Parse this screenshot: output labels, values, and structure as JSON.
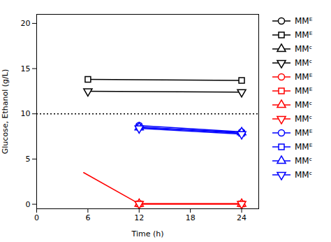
{
  "chart_data": {
    "type": "line",
    "xlabel": "Time (h)",
    "ylabel": "Glucose, Ethanol (g/L)",
    "xlim": [
      0,
      26
    ],
    "ylim": [
      -0.5,
      21
    ],
    "xticks": [
      0,
      6,
      12,
      18,
      24
    ],
    "yticks": [
      0,
      5,
      10,
      15,
      20
    ],
    "legend": "right",
    "reference_lines": [
      {
        "y": 10,
        "color": "black",
        "line_style": "dotted"
      }
    ],
    "series": [
      {
        "color": "red",
        "x": [
          5.5,
          12
        ],
        "values": [
          3.5,
          0.05
        ]
      },
      {
        "name": "MMᴱ",
        "color": "black",
        "marker": "circle",
        "x": [],
        "values": []
      },
      {
        "name": "MMᴱ",
        "color": "black",
        "marker": "square",
        "x": [
          6,
          24
        ],
        "values": [
          13.8,
          13.7
        ]
      },
      {
        "name": "MMᶜ",
        "color": "black",
        "marker": "triangle-up",
        "x": [],
        "values": []
      },
      {
        "name": "MMᶜ",
        "color": "black",
        "marker": "triangle-down",
        "x": [
          6,
          24
        ],
        "values": [
          12.5,
          12.4
        ]
      },
      {
        "name": "MMᴱ",
        "color": "red",
        "marker": "circle",
        "x": [
          12,
          24
        ],
        "values": [
          0.05,
          0.05
        ]
      },
      {
        "name": "MMᴱ",
        "color": "red",
        "marker": "square",
        "x": [
          12,
          24
        ],
        "values": [
          0.05,
          0.05
        ]
      },
      {
        "name": "MMᶜ",
        "color": "red",
        "marker": "triangle-up",
        "x": [
          12,
          24
        ],
        "values": [
          0.05,
          0.05
        ]
      },
      {
        "name": "MMᶜ",
        "color": "red",
        "marker": "triangle-down",
        "x": [
          12,
          24
        ],
        "values": [
          0.05,
          0.05
        ]
      },
      {
        "name": "MMᴱ",
        "color": "blue",
        "marker": "circle",
        "x": [
          12,
          24
        ],
        "values": [
          8.7,
          8.0
        ],
        "yerr": [
          0.25,
          0.1
        ]
      },
      {
        "name": "MMᴱ",
        "color": "blue",
        "marker": "square",
        "x": [
          12,
          24
        ],
        "values": [
          8.55,
          7.85
        ]
      },
      {
        "name": "MMᶜ",
        "color": "blue",
        "marker": "triangle-up",
        "x": [
          12,
          24
        ],
        "values": [
          8.5,
          7.95
        ]
      },
      {
        "name": "MMᶜ",
        "color": "blue",
        "marker": "triangle-down",
        "x": [
          12,
          24
        ],
        "values": [
          8.4,
          7.75
        ]
      }
    ]
  }
}
